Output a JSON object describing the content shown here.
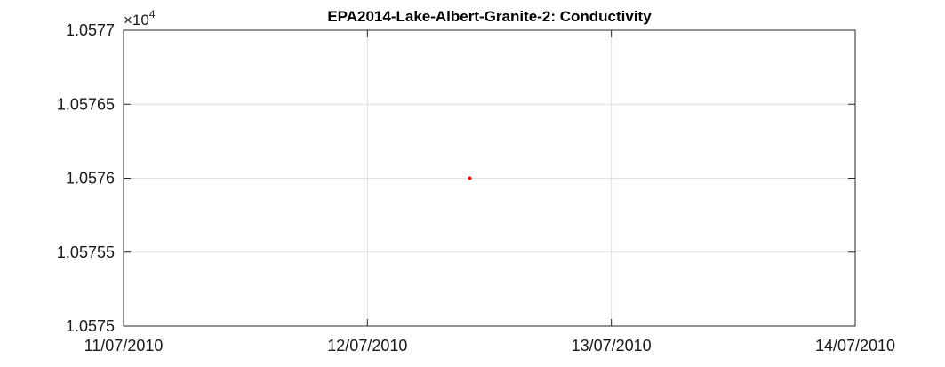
{
  "chart_data": {
    "type": "scatter",
    "title": "EPA2014-Lake-Albert-Granite-2: Conductivity",
    "xlabel": "",
    "ylabel": "",
    "x_ticks": [
      "11/07/2010",
      "12/07/2010",
      "13/07/2010",
      "14/07/2010"
    ],
    "x_tick_days": [
      0,
      1,
      2,
      3
    ],
    "xlim_days": [
      0,
      3
    ],
    "y_ticks": [
      1.0575,
      1.05755,
      1.0576,
      1.05765,
      1.0577
    ],
    "y_tick_labels": [
      "1.0575",
      "1.05755",
      "1.0576",
      "1.05765",
      "1.0577"
    ],
    "ylim": [
      1.0575,
      1.0577
    ],
    "y_multiplier_base": "×10",
    "y_multiplier_exponent": "4",
    "series": [
      {
        "x": [
          "12/07/2010 10:00"
        ],
        "x_days": [
          1.42
        ],
        "y": [
          1.0576
        ],
        "color": "#ff0000"
      }
    ],
    "grid": true,
    "legend": "none",
    "colors": {
      "marker": "#ff0000",
      "grid": "#dfdfdf",
      "axes": "#262626"
    }
  }
}
